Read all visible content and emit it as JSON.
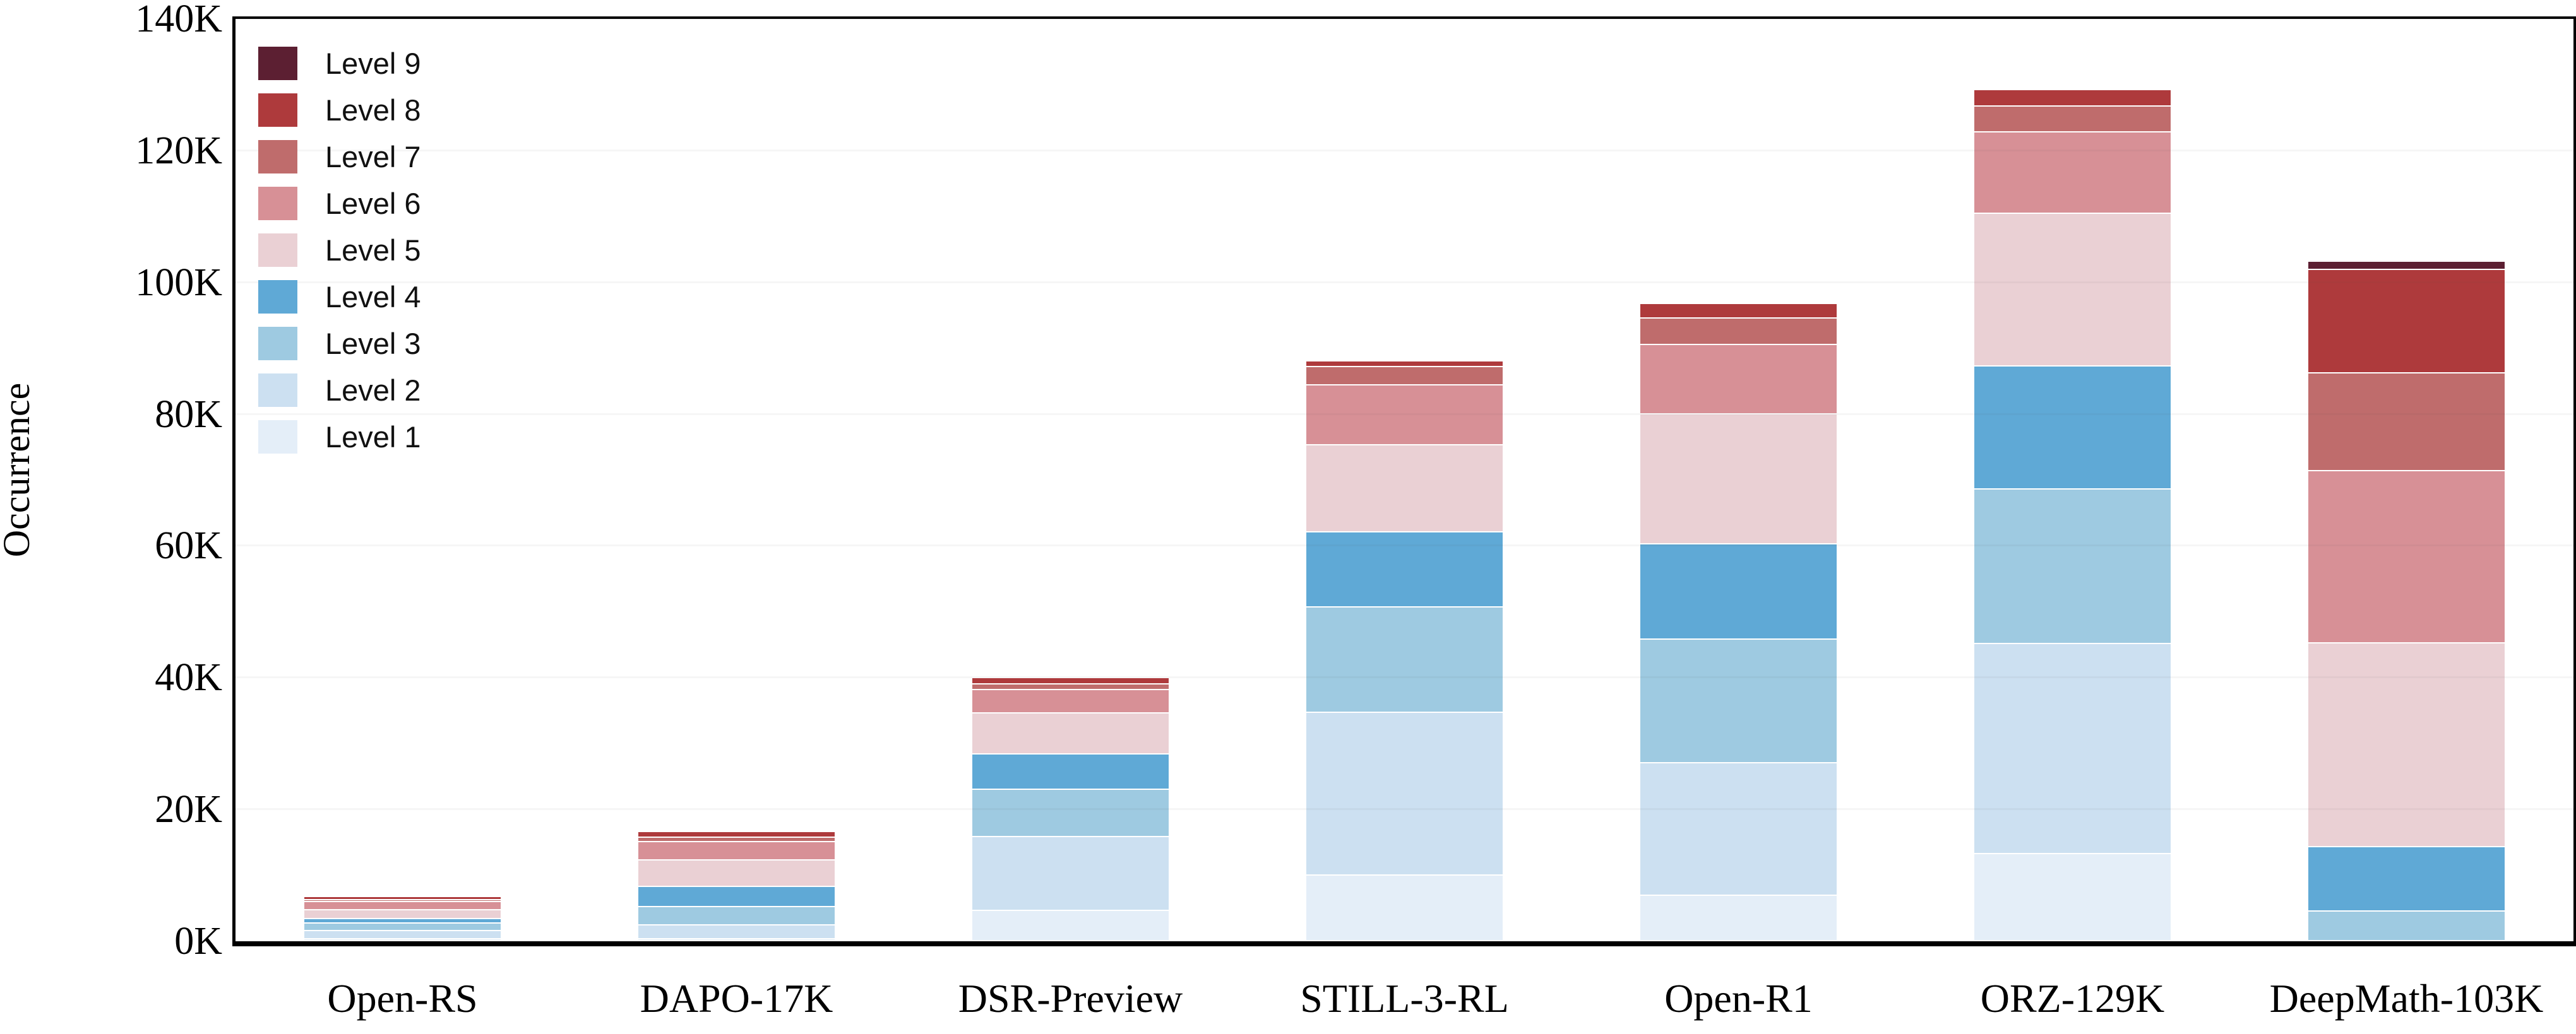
{
  "figure": {
    "background": "#ffffff",
    "axis_color": "#000000",
    "grid_color_hint": "faint gray horizontal lines every 20K",
    "ylabel": "Occurrence"
  },
  "chart_data": {
    "type": "bar",
    "stacked": true,
    "orientation": "vertical",
    "title": "",
    "xlabel": "",
    "ylabel": "Occurrence",
    "unit": "K (thousands of occurrences)",
    "ylim": [
      0,
      140
    ],
    "ytick_values": [
      0,
      20,
      40,
      60,
      80,
      100,
      120,
      140
    ],
    "ytick_labels": [
      "0K",
      "20K",
      "40K",
      "60K",
      "80K",
      "100K",
      "120K",
      "140K"
    ],
    "grid": "horizontal gridlines at each 20K step",
    "legend_position": "upper-left, inside plot, no frame, listed Level 9 (top) to Level 1 (bottom)",
    "categories": [
      "Open-RS",
      "DAPO-17K",
      "DSR-Preview",
      "STILL-3-RL",
      "Open-R1",
      "ORZ-129K",
      "DeepMath-103K"
    ],
    "series": [
      {
        "name": "Level 1",
        "color": "#e4eef8",
        "values": [
          0.3,
          0.3,
          4.6,
          10.0,
          6.9,
          13.2,
          0
        ]
      },
      {
        "name": "Level 2",
        "color": "#cce0f1",
        "values": [
          1.2,
          2.1,
          11.2,
          24.7,
          20.1,
          31.9,
          0
        ]
      },
      {
        "name": "Level 3",
        "color": "#9ecae1",
        "values": [
          1.2,
          2.8,
          7.2,
          16.0,
          18.8,
          23.5,
          4.5
        ]
      },
      {
        "name": "Level 4",
        "color": "#5fa9d6",
        "values": [
          0.7,
          3.0,
          5.3,
          11.4,
          14.4,
          18.6,
          9.8
        ]
      },
      {
        "name": "Level 5",
        "color": "#ead0d4",
        "values": [
          1.3,
          4.1,
          6.3,
          13.2,
          19.8,
          23.2,
          30.9
        ]
      },
      {
        "name": "Level 6",
        "color": "#d79096",
        "values": [
          1.2,
          2.7,
          3.5,
          9.1,
          10.5,
          12.4,
          26.1
        ]
      },
      {
        "name": "Level 7",
        "color": "#bf6c6c",
        "values": [
          0.3,
          0.7,
          0.9,
          2.7,
          4.0,
          3.9,
          14.9
        ]
      },
      {
        "name": "Level 8",
        "color": "#ae3a3c",
        "values": [
          0.5,
          0.9,
          0.9,
          0.9,
          2.2,
          2.5,
          15.7
        ]
      },
      {
        "name": "Level 9",
        "color": "#5c1f32",
        "values": [
          0,
          0,
          0,
          0,
          0,
          0,
          1.2
        ]
      }
    ],
    "totals_K": [
      6.7,
      16.6,
      39.9,
      88.0,
      96.7,
      129.2,
      103.1
    ]
  }
}
